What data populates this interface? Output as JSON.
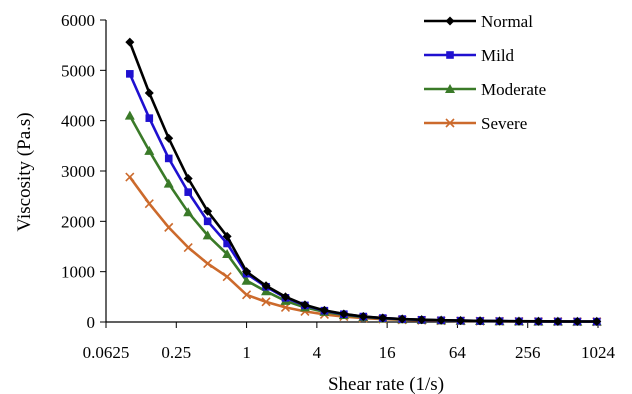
{
  "chart_data": {
    "type": "line",
    "title": "",
    "xlabel": "Shear rate (1/s)",
    "ylabel": "Viscosity (Pa.s)",
    "x_scale": "log2",
    "xlim": [
      0.0625,
      1024
    ],
    "ylim": [
      0,
      6000
    ],
    "x_ticks": [
      0.0625,
      0.25,
      1,
      4,
      16,
      64,
      256,
      1024
    ],
    "x_tick_labels": [
      "0.0625",
      "0.25",
      "1",
      "4",
      "16",
      "64",
      "256",
      "1024"
    ],
    "y_ticks": [
      0,
      1000,
      2000,
      3000,
      4000,
      5000,
      6000
    ],
    "y_tick_labels": [
      "0",
      "1000",
      "2000",
      "3000",
      "4000",
      "5000",
      "6000"
    ],
    "grid": false,
    "legend_position": "top-right",
    "x": [
      0.1,
      0.1468,
      0.2154,
      0.3162,
      0.4642,
      0.6813,
      1,
      1.468,
      2.154,
      3.162,
      4.642,
      6.813,
      10,
      14.68,
      21.54,
      31.62,
      46.42,
      68.13,
      100,
      146.8,
      215.4,
      316.2,
      464.2,
      681.3,
      1000
    ],
    "series": [
      {
        "name": "Normal",
        "color": "#000000",
        "marker": "diamond",
        "values": [
          5560,
          4550,
          3650,
          2850,
          2200,
          1700,
          1000,
          720,
          500,
          340,
          230,
          160,
          110,
          80,
          60,
          45,
          35,
          28,
          22,
          18,
          15,
          13,
          11,
          10,
          9
        ]
      },
      {
        "name": "Mild",
        "color": "#1f10d0",
        "marker": "square",
        "values": [
          4930,
          4050,
          3250,
          2580,
          2000,
          1560,
          960,
          700,
          480,
          330,
          225,
          155,
          108,
          78,
          58,
          44,
          34,
          27,
          21,
          17,
          14,
          12,
          10,
          9,
          8
        ]
      },
      {
        "name": "Moderate",
        "color": "#3a7a28",
        "marker": "triangle",
        "values": [
          4100,
          3400,
          2750,
          2180,
          1720,
          1350,
          820,
          610,
          420,
          290,
          200,
          140,
          98,
          72,
          54,
          41,
          32,
          25,
          20,
          16,
          13,
          11,
          9,
          8,
          7
        ]
      },
      {
        "name": "Severe",
        "color": "#cc6a2c",
        "marker": "x",
        "values": [
          2880,
          2350,
          1880,
          1480,
          1160,
          900,
          540,
          400,
          290,
          210,
          150,
          108,
          78,
          58,
          44,
          34,
          27,
          21,
          17,
          14,
          11,
          9,
          8,
          7,
          6
        ]
      }
    ]
  }
}
